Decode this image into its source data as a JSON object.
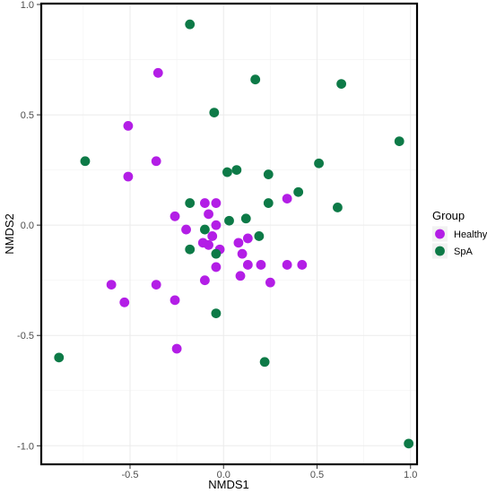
{
  "chart_data": {
    "type": "scatter",
    "title": "",
    "xlabel": "NMDS1",
    "ylabel": "NMDS2",
    "xlim": [
      -0.97,
      1.03
    ],
    "ylim": [
      -1.08,
      1.0
    ],
    "x_ticks": [
      -0.5,
      0.0,
      0.5,
      1.0
    ],
    "x_tick_labels": [
      "-0.5",
      "0.0",
      "0.5",
      "1.0"
    ],
    "y_ticks": [
      -1.0,
      -0.5,
      0.0,
      0.5,
      1.0
    ],
    "y_tick_labels": [
      "-1.0",
      "-0.5",
      "0.0",
      "0.5",
      "1.0"
    ],
    "grid": true,
    "legend": {
      "title": "Group",
      "position": "right",
      "entries": [
        "Healthy",
        "SpA"
      ]
    },
    "series": [
      {
        "name": "Healthy",
        "color": "#b31ee6",
        "points": [
          [
            -0.35,
            0.69
          ],
          [
            -0.51,
            0.45
          ],
          [
            -0.36,
            0.29
          ],
          [
            -0.51,
            0.22
          ],
          [
            -0.26,
            0.04
          ],
          [
            -0.2,
            -0.02
          ],
          [
            -0.1,
            0.1
          ],
          [
            -0.04,
            0.1
          ],
          [
            -0.08,
            0.05
          ],
          [
            -0.04,
            0.0
          ],
          [
            -0.06,
            -0.05
          ],
          [
            -0.02,
            -0.11
          ],
          [
            -0.11,
            -0.08
          ],
          [
            -0.08,
            -0.09
          ],
          [
            -0.04,
            -0.19
          ],
          [
            0.08,
            -0.08
          ],
          [
            0.1,
            -0.13
          ],
          [
            0.13,
            -0.06
          ],
          [
            0.13,
            -0.18
          ],
          [
            0.2,
            -0.18
          ],
          [
            0.09,
            -0.23
          ],
          [
            0.25,
            -0.26
          ],
          [
            -0.1,
            -0.25
          ],
          [
            0.34,
            0.12
          ],
          [
            0.34,
            -0.18
          ],
          [
            0.42,
            -0.18
          ],
          [
            -0.6,
            -0.27
          ],
          [
            -0.36,
            -0.27
          ],
          [
            -0.26,
            -0.34
          ],
          [
            -0.53,
            -0.35
          ],
          [
            -0.25,
            -0.56
          ]
        ]
      },
      {
        "name": "SpA",
        "color": "#0d7a47",
        "points": [
          [
            -0.18,
            0.91
          ],
          [
            0.17,
            0.66
          ],
          [
            0.63,
            0.64
          ],
          [
            -0.05,
            0.51
          ],
          [
            0.94,
            0.38
          ],
          [
            -0.74,
            0.29
          ],
          [
            0.51,
            0.28
          ],
          [
            0.02,
            0.24
          ],
          [
            0.07,
            0.25
          ],
          [
            0.24,
            0.23
          ],
          [
            0.4,
            0.15
          ],
          [
            0.24,
            0.1
          ],
          [
            0.61,
            0.08
          ],
          [
            -0.18,
            0.1
          ],
          [
            0.03,
            0.02
          ],
          [
            0.12,
            0.03
          ],
          [
            -0.1,
            -0.02
          ],
          [
            -0.18,
            -0.11
          ],
          [
            0.19,
            -0.05
          ],
          [
            -0.04,
            -0.13
          ],
          [
            -0.04,
            -0.4
          ],
          [
            0.22,
            -0.62
          ],
          [
            -0.88,
            -0.6
          ],
          [
            0.99,
            -0.99
          ]
        ]
      }
    ]
  }
}
